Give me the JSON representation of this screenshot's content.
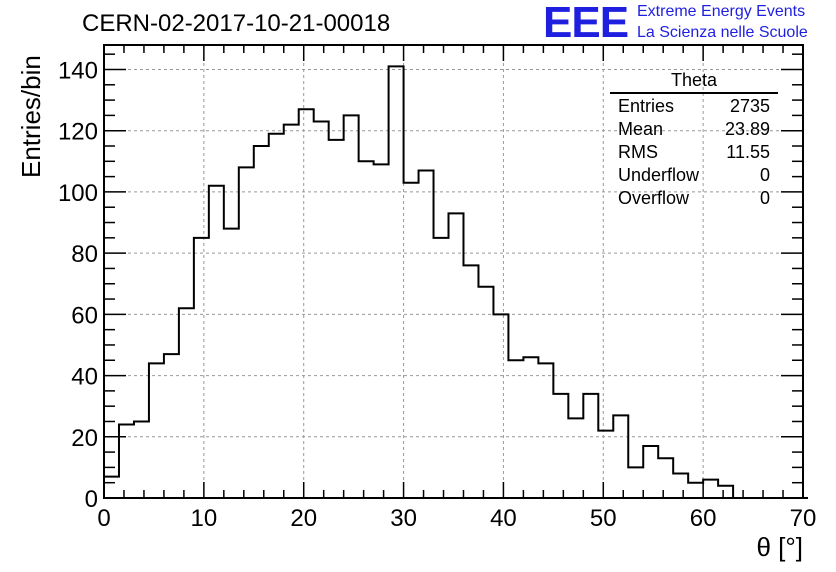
{
  "chart_data": {
    "type": "histogram",
    "title": "CERN-02-2017-10-21-00018",
    "xlabel": "θ [°]",
    "ylabel": "Entries/bin",
    "xlim": [
      0,
      70
    ],
    "ylim": [
      0,
      148
    ],
    "x_ticks": [
      "0",
      "10",
      "20",
      "30",
      "40",
      "50",
      "60",
      "70"
    ],
    "y_ticks": [
      "0",
      "20",
      "40",
      "60",
      "80",
      "100",
      "120",
      "140"
    ],
    "grid": true,
    "bin_width": 1.5,
    "bin_start": 0,
    "values": [
      7,
      24,
      25,
      44,
      47,
      62,
      85,
      102,
      88,
      108,
      115,
      119,
      122,
      127,
      123,
      117,
      125,
      110,
      109,
      141,
      103,
      107,
      85,
      93,
      76,
      69,
      60,
      45,
      46,
      44,
      34,
      26,
      34,
      22,
      27,
      10,
      17,
      13,
      8,
      5,
      6,
      4,
      0,
      0,
      0,
      0,
      0
    ],
    "stats": {
      "title": "Theta",
      "rows": [
        {
          "label": "Entries",
          "value": "2735"
        },
        {
          "label": "Mean",
          "value": "23.89"
        },
        {
          "label": "RMS",
          "value": "11.55"
        },
        {
          "label": "Underflow",
          "value": "0"
        },
        {
          "label": "Overflow",
          "value": "0"
        }
      ]
    },
    "colors": {
      "line": "#000000",
      "grid": "#999999",
      "logo": "#1f1fe0"
    }
  },
  "logo": {
    "mark": "EEE",
    "line1": "Extreme Energy Events",
    "line2": "La Scienza nelle Scuole"
  }
}
